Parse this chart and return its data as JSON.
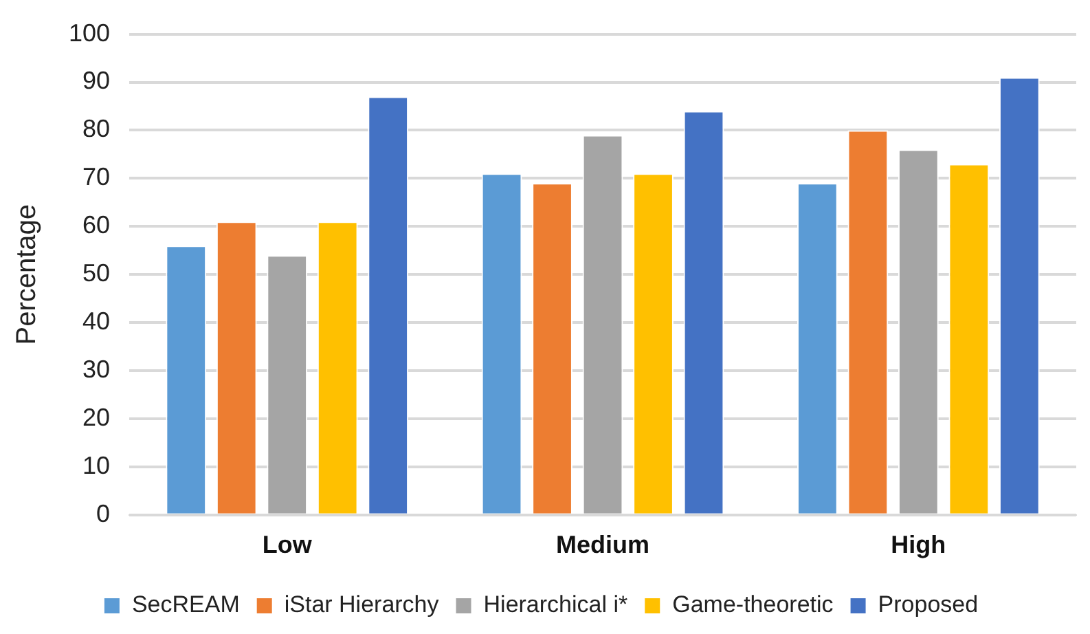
{
  "chart_data": {
    "type": "bar",
    "ylabel": "Percentage",
    "categories": [
      "Low",
      "Medium",
      "High"
    ],
    "series": [
      {
        "name": "SecREAM",
        "color": "#5b9bd5",
        "values": [
          56,
          71,
          69
        ]
      },
      {
        "name": "iStar Hierarchy",
        "color": "#ed7d31",
        "values": [
          61,
          69,
          80
        ]
      },
      {
        "name": "Hierarchical i*",
        "color": "#a5a5a5",
        "values": [
          54,
          79,
          76
        ]
      },
      {
        "name": "Game-theoretic",
        "color": "#ffc000",
        "values": [
          61,
          71,
          73
        ]
      },
      {
        "name": "Proposed",
        "color": "#4472c4",
        "values": [
          87,
          84,
          91
        ]
      }
    ],
    "ylim": [
      0,
      100
    ],
    "yticks": [
      0,
      10,
      20,
      30,
      40,
      50,
      60,
      70,
      80,
      90,
      100
    ],
    "grid": "y",
    "legend": "bottom"
  }
}
